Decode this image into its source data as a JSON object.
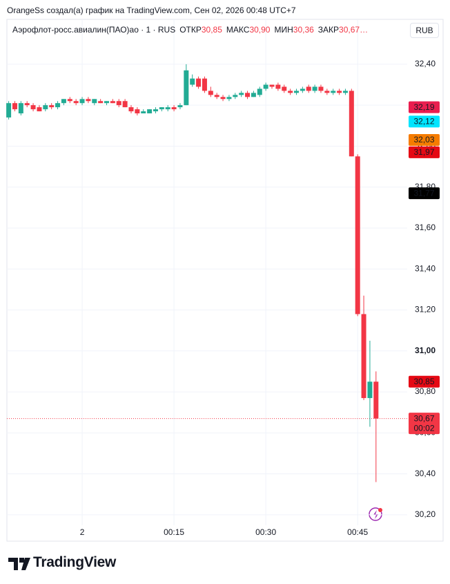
{
  "header": {
    "text": "OrangeSs создал(а) график на TradingView.com, Сен 02, 2026 00:48 UTC+7"
  },
  "currency_button": "RUB",
  "footer": {
    "brand": "TradingView"
  },
  "chart_data": {
    "type": "candlestick",
    "symbol": "Аэрофлот-росс.авиалин(ПАО)ао · 1 · RUS",
    "ohlc_legend": [
      {
        "name": "ОТКР",
        "value": 30.85,
        "label": "30,85"
      },
      {
        "name": "МАКС",
        "value": 30.9,
        "label": "30,90"
      },
      {
        "name": "МИН",
        "value": 30.36,
        "label": "30,36"
      },
      {
        "name": "ЗАКР",
        "value": 30.67,
        "label": "30,67…"
      }
    ],
    "legend_value_color": "#f23645",
    "categories": [
      null,
      null,
      null,
      null,
      null,
      null,
      null,
      null,
      null,
      null,
      null,
      null,
      "2",
      null,
      null,
      null,
      null,
      null,
      null,
      null,
      null,
      null,
      null,
      null,
      null,
      null,
      null,
      "00:15",
      null,
      null,
      null,
      null,
      null,
      null,
      null,
      null,
      null,
      null,
      null,
      null,
      null,
      null,
      "00:30",
      null,
      null,
      null,
      null,
      null,
      null,
      null,
      null,
      null,
      null,
      null,
      null,
      null,
      null,
      "00:45",
      null,
      null,
      null
    ],
    "open": [
      32.14,
      32.21,
      32.16,
      32.21,
      32.2,
      32.19,
      32.18,
      32.2,
      32.19,
      32.21,
      32.23,
      32.22,
      32.21,
      32.23,
      32.21,
      32.22,
      32.21,
      32.22,
      32.22,
      32.22,
      32.19,
      32.18,
      32.16,
      32.16,
      32.17,
      32.18,
      32.18,
      32.19,
      32.19,
      32.2,
      32.3,
      32.33,
      32.33,
      32.27,
      32.25,
      32.24,
      32.23,
      32.24,
      32.25,
      32.26,
      32.24,
      32.25,
      32.28,
      32.3,
      32.3,
      32.29,
      32.27,
      32.26,
      32.27,
      32.29,
      32.27,
      32.29,
      32.27,
      32.26,
      32.27,
      32.26,
      32.27,
      31.95,
      31.18,
      30.77,
      30.85
    ],
    "high": [
      32.22,
      32.22,
      32.22,
      32.22,
      32.21,
      32.2,
      32.21,
      32.21,
      32.22,
      32.23,
      32.24,
      32.23,
      32.24,
      32.24,
      32.23,
      32.23,
      32.22,
      32.23,
      32.23,
      32.23,
      32.2,
      32.19,
      32.18,
      32.18,
      32.19,
      32.19,
      32.2,
      32.2,
      32.21,
      32.4,
      32.35,
      32.34,
      32.34,
      32.29,
      32.26,
      32.25,
      32.25,
      32.26,
      32.27,
      32.27,
      32.27,
      32.29,
      32.31,
      32.3,
      32.31,
      32.3,
      32.28,
      32.28,
      32.29,
      32.3,
      32.3,
      32.3,
      32.28,
      32.28,
      32.28,
      32.28,
      32.28,
      31.96,
      31.27,
      31.05,
      30.9
    ],
    "low": [
      32.13,
      32.17,
      32.15,
      32.19,
      32.17,
      32.17,
      32.17,
      32.18,
      32.18,
      32.2,
      32.21,
      32.2,
      32.2,
      32.21,
      32.2,
      32.21,
      32.2,
      32.21,
      32.19,
      32.19,
      32.16,
      32.15,
      32.16,
      32.16,
      32.16,
      32.17,
      32.17,
      32.17,
      32.18,
      32.2,
      32.29,
      32.28,
      32.26,
      32.24,
      32.23,
      32.22,
      32.22,
      32.23,
      32.24,
      32.23,
      32.24,
      32.24,
      32.27,
      32.28,
      32.27,
      32.26,
      32.25,
      32.25,
      32.26,
      32.26,
      32.26,
      32.26,
      32.25,
      32.25,
      32.25,
      32.25,
      31.95,
      31.17,
      30.76,
      30.63,
      30.36
    ],
    "close": [
      32.21,
      32.18,
      32.21,
      32.2,
      32.18,
      32.17,
      32.2,
      32.19,
      32.21,
      32.23,
      32.22,
      32.21,
      32.23,
      32.22,
      32.23,
      32.21,
      32.22,
      32.21,
      32.2,
      32.19,
      32.17,
      32.16,
      32.17,
      32.18,
      32.18,
      32.19,
      32.19,
      32.18,
      32.2,
      32.37,
      32.33,
      32.29,
      32.27,
      32.25,
      32.24,
      32.23,
      32.24,
      32.25,
      32.26,
      32.24,
      32.26,
      32.28,
      32.3,
      32.29,
      32.28,
      32.27,
      32.26,
      32.27,
      32.28,
      32.27,
      32.29,
      32.27,
      32.26,
      32.27,
      32.26,
      32.27,
      31.95,
      31.18,
      30.77,
      30.85,
      30.67
    ],
    "up_color": "#22ab94",
    "down_color": "#f23645",
    "ylim": [
      30.149,
      32.619
    ],
    "yticks": [
      {
        "value": 30.2,
        "label": "30,20"
      },
      {
        "value": 30.4,
        "label": "30,40"
      },
      {
        "value": 30.6,
        "label": "30,60"
      },
      {
        "value": 30.8,
        "label": "30,80"
      },
      {
        "value": 31.0,
        "label": "31,00"
      },
      {
        "value": 31.2,
        "label": "31,20"
      },
      {
        "value": 31.4,
        "label": "31,40"
      },
      {
        "value": 31.6,
        "label": "31,60"
      },
      {
        "value": 31.8,
        "label": "31,80"
      },
      {
        "value": 32.0,
        "label": "32,00"
      },
      {
        "value": 32.2,
        "label": "32,20"
      },
      {
        "value": 32.4,
        "label": "32,40"
      }
    ],
    "emphasized_ytick": 31.0,
    "grid": true,
    "price_labels": [
      {
        "value": 32.19,
        "label": "32,19",
        "color": "#e91e4f",
        "text_color": "#ffffff"
      },
      {
        "value": 32.12,
        "label": "32,12",
        "color": "#00e5ff",
        "text_color": "#131722"
      },
      {
        "value": 32.03,
        "label": "32,03",
        "color": "#f57c00",
        "text_color": "#ffffff"
      },
      {
        "value": 31.97,
        "label": "31,97",
        "color": "#e50914",
        "text_color": "#ffffff"
      },
      {
        "value": 31.77,
        "label": "31,77",
        "color": "#000000",
        "text_color": "#ffffff"
      },
      {
        "value": 30.85,
        "label": "30,85",
        "color": "#e50914",
        "text_color": "#ffffff"
      }
    ],
    "last_price": {
      "value": 30.67,
      "label": "30,67",
      "countdown": "00:02",
      "color": "#f23645"
    }
  }
}
